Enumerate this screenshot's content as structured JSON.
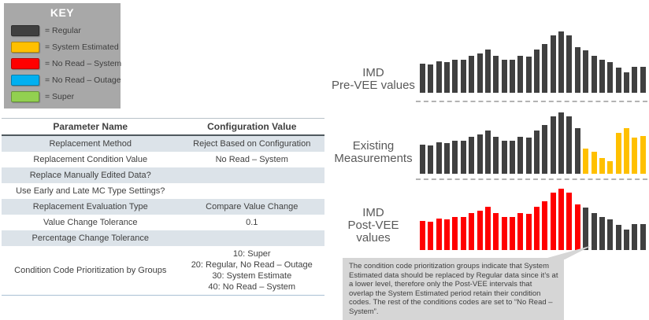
{
  "colors": {
    "regular": "#404040",
    "system_estimated": "#FFC000",
    "no_read_system": "#FF0000",
    "no_read_outage": "#00B0F0",
    "super": "#92D050"
  },
  "key_panel": {
    "title": "KEY",
    "items": [
      {
        "label": "= Regular",
        "color_key": "regular"
      },
      {
        "label": "= System Estimated",
        "color_key": "system_estimated"
      },
      {
        "label": "= No Read – System",
        "color_key": "no_read_system"
      },
      {
        "label": "= No Read – Outage",
        "color_key": "no_read_outage"
      },
      {
        "label": "= Super",
        "color_key": "super"
      }
    ]
  },
  "table": {
    "headers": [
      "Parameter Name",
      "Configuration Value"
    ],
    "rows": [
      {
        "name": "Replacement Method",
        "value": "Reject Based on Configuration",
        "shaded": true
      },
      {
        "name": "Replacement Condition Value",
        "value": "No Read – System",
        "shaded": false
      },
      {
        "name": "Replace Manually Edited Data?",
        "value": "",
        "shaded": true
      },
      {
        "name": "Use Early and Late MC Type Settings?",
        "value": "",
        "shaded": false
      },
      {
        "name": "Replacement Evaluation Type",
        "value": "Compare Value Change",
        "shaded": true
      },
      {
        "name": "Value Change Tolerance",
        "value": "0.1",
        "shaded": false
      },
      {
        "name": "Percentage Change Tolerance",
        "value": "",
        "shaded": true
      },
      {
        "name": "Condition Code Prioritization by Groups",
        "value": "10: Super\n20: Regular, No Read – Outage\n30: System Estimate\n40: No Read – System",
        "shaded": false
      }
    ]
  },
  "chart_data": [
    {
      "type": "bar",
      "title": "IMD Pre-VEE values",
      "title_lines": [
        "IMD",
        "Pre-VEE values"
      ],
      "values": [
        37,
        36,
        40,
        39,
        42,
        42,
        47,
        50,
        55,
        47,
        42,
        42,
        47,
        46,
        55,
        62,
        73,
        78,
        73,
        58,
        54,
        47,
        42,
        39,
        32,
        26,
        33,
        33
      ],
      "bar_color_runs": [
        [
          "regular",
          28
        ]
      ],
      "xlabel": "",
      "ylabel": "",
      "ylim": [
        0,
        80
      ],
      "axes": "none",
      "grid": false,
      "legend": "shared KEY panel at top-left"
    },
    {
      "type": "bar",
      "title": "Existing Measurements",
      "title_lines": [
        "Existing",
        "Measurements"
      ],
      "values": [
        37,
        36,
        40,
        39,
        42,
        42,
        47,
        50,
        55,
        47,
        42,
        42,
        47,
        46,
        55,
        62,
        73,
        78,
        73,
        58,
        32,
        28,
        20,
        16,
        52,
        58,
        46,
        48
      ],
      "bar_color_runs": [
        [
          "regular",
          20
        ],
        [
          "system_estimated",
          8
        ]
      ],
      "xlabel": "",
      "ylabel": "",
      "ylim": [
        0,
        80
      ],
      "axes": "none",
      "grid": false,
      "legend": "shared KEY panel at top-left"
    },
    {
      "type": "bar",
      "title": "IMD Post-VEE values",
      "title_lines": [
        "IMD",
        "Post-VEE values"
      ],
      "values": [
        37,
        36,
        40,
        39,
        42,
        42,
        47,
        50,
        55,
        47,
        42,
        42,
        47,
        46,
        55,
        62,
        73,
        78,
        73,
        58,
        54,
        47,
        42,
        39,
        32,
        26,
        33,
        33
      ],
      "bar_color_runs": [
        [
          "no_read_system",
          20
        ],
        [
          "regular",
          8
        ]
      ],
      "xlabel": "",
      "ylabel": "",
      "ylim": [
        0,
        80
      ],
      "axes": "none",
      "grid": false,
      "legend": "shared KEY panel at top-left"
    }
  ],
  "callout": {
    "text": "The condition code prioritization groups indicate that System Estimated data should be replaced by Regular data since it’s at a lower level, therefore only the Post-VEE intervals that overlap the System Estimated period retain their condition codes.  The rest of the conditions codes are set to “No Read – System”.",
    "bg": "#d6d6d6"
  }
}
